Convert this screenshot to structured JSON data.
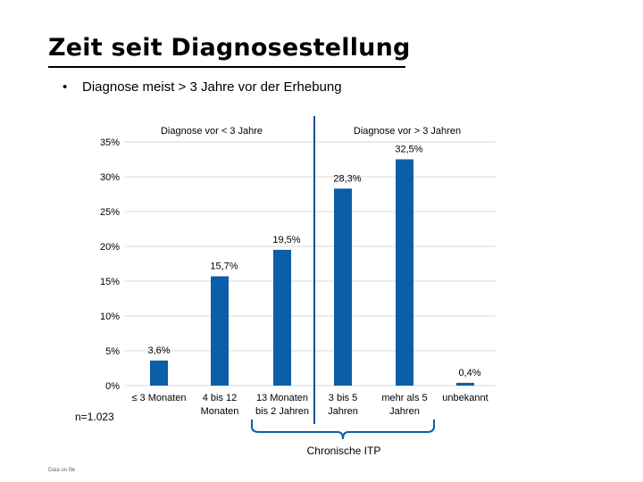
{
  "slide": {
    "title": "Zeit seit Diagnosestellung",
    "bullet": "Diagnose meist > 3 Jahre vor der Erhebung",
    "footnote": "Data on file"
  },
  "colors": {
    "bar": "#0b5ea8",
    "grid": "#d9d9d9",
    "divider": "#1f4e8c",
    "brace": "#0b5ea8"
  },
  "chart_data": {
    "type": "bar",
    "categories": [
      [
        "≤ 3 Monaten"
      ],
      [
        "4 bis 12",
        "Monaten"
      ],
      [
        "13 Monaten",
        "bis 2 Jahren"
      ],
      [
        "3 bis 5",
        "Jahren"
      ],
      [
        "mehr als 5",
        "Jahren"
      ],
      [
        "unbekannt"
      ]
    ],
    "values": [
      3.6,
      15.7,
      19.5,
      28.3,
      32.5,
      0.4
    ],
    "data_labels": [
      "3,6%",
      "15,7%",
      "19,5%",
      "28,3%",
      "32,5%",
      "0,4%"
    ],
    "y_ticks": [
      "0%",
      "5%",
      "10%",
      "15%",
      "20%",
      "25%",
      "30%",
      "35%"
    ],
    "ylim": [
      0,
      35
    ],
    "grid": true,
    "annotations": {
      "left_group": "Diagnose vor < 3 Jahre",
      "right_group": "Diagnose vor > 3 Jahren",
      "sample_size": "n=1.023",
      "brace_label": "Chronische ITP"
    }
  }
}
